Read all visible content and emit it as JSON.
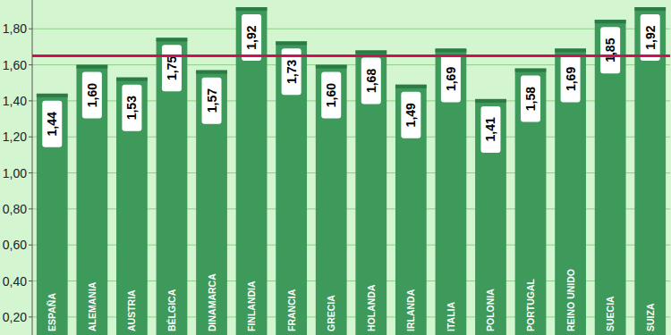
{
  "chart_data": {
    "type": "bar",
    "categories": [
      "ESPAÑA",
      "ALEMANIA",
      "AUSTRIA",
      "BÉLGICA",
      "DINAMARCA",
      "FINLANDIA",
      "FRANCIA",
      "GRECIA",
      "HOLANDA",
      "IRLANDA",
      "ITALIA",
      "POLONIA",
      "PORTUGAL",
      "REINO UNIDO",
      "SUECIA",
      "SUIZA"
    ],
    "values": [
      1.44,
      1.6,
      1.53,
      1.75,
      1.57,
      1.92,
      1.73,
      1.6,
      1.68,
      1.49,
      1.69,
      1.41,
      1.58,
      1.69,
      1.85,
      1.92
    ],
    "value_labels": [
      "1,44",
      "1,60",
      "1,53",
      "1,75",
      "1,57",
      "1,92",
      "1,73",
      "1,60",
      "1,68",
      "1,49",
      "1,69",
      "1,41",
      "1,58",
      "1,69",
      "1,85",
      "1,92"
    ],
    "color": "#3d9a5a",
    "reference_line": 1.65,
    "ylim": [
      0.1,
      1.96
    ],
    "yticks": [
      {
        "value": 0.2,
        "label": "0,20"
      },
      {
        "value": 0.4,
        "label": "0,40"
      },
      {
        "value": 0.6,
        "label": "0,60"
      },
      {
        "value": 0.8,
        "label": "0,80"
      },
      {
        "value": 1.0,
        "label": "1,00"
      },
      {
        "value": 1.2,
        "label": "1,20"
      },
      {
        "value": 1.4,
        "label": "1,40"
      },
      {
        "value": 1.6,
        "label": "1,60"
      },
      {
        "value": 1.8,
        "label": "1,80"
      }
    ],
    "grid": true,
    "data_labels": true
  }
}
